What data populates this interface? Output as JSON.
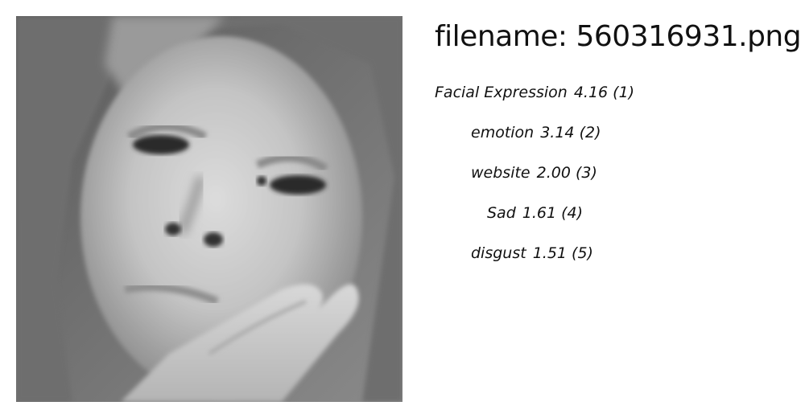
{
  "image": {
    "alt": "grayscale close-up of a young girl with her hand on her cheek",
    "tone": "#7c7c7c"
  },
  "filename_label": "filename: 560316931.png",
  "tags": [
    {
      "label": "Facial Expression",
      "score": "4.16 (1)"
    },
    {
      "label": "emotion",
      "score": "3.14 (2)"
    },
    {
      "label": "website",
      "score": "2.00 (3)"
    },
    {
      "label": "Sad",
      "score": "1.61 (4)"
    },
    {
      "label": "disgust",
      "score": "1.51 (5)"
    }
  ]
}
